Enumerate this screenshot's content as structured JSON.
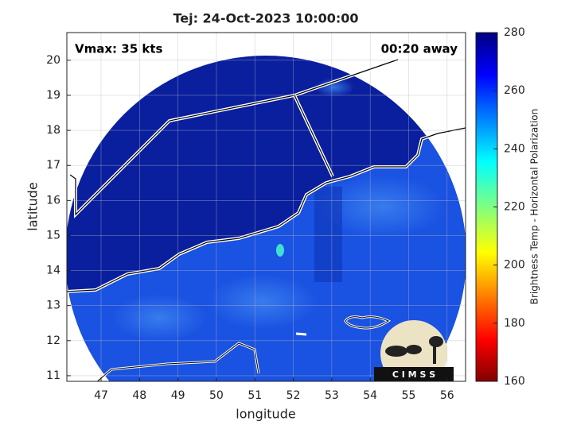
{
  "chart_data": {
    "type": "map",
    "title": "Tej: 24-Oct-2023 10:00:00",
    "x_label": "longitude",
    "y_label": "latitude",
    "annotations": [
      "Vmax: 35 kts",
      "00:20 away"
    ],
    "logo": "C I M S S",
    "xlim": [
      46.11,
      56.48
    ],
    "xticks": [
      47,
      48,
      49,
      50,
      51,
      52,
      53,
      54,
      55,
      56
    ],
    "ylim": [
      10.84,
      20.79
    ],
    "yticks": [
      11,
      12,
      13,
      14,
      15,
      16,
      17,
      18,
      19,
      20
    ],
    "grid": true,
    "colorbar": {
      "label": "Brightness Temp - Horizontal Polarization",
      "colormap": "jet",
      "lim": [
        160,
        280
      ],
      "ticks": [
        160,
        180,
        200,
        220,
        240,
        260,
        280
      ]
    }
  }
}
